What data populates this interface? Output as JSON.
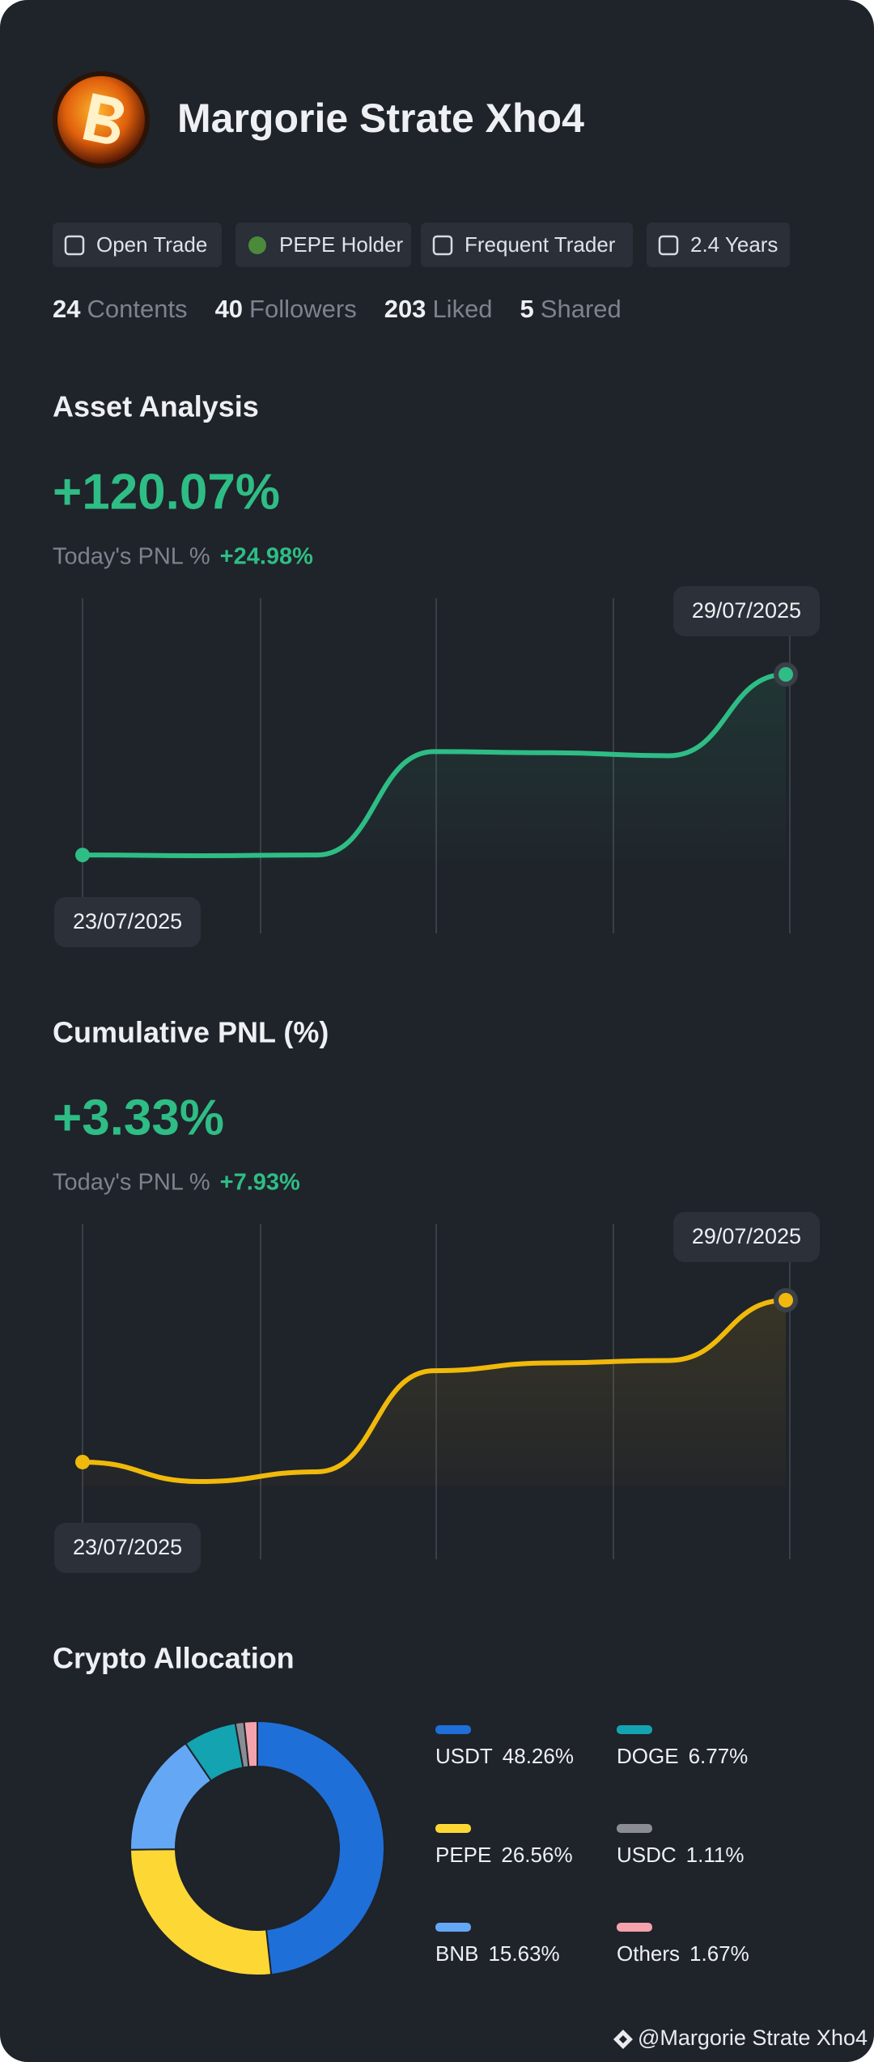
{
  "profile": {
    "name": "Margorie Strate Xho4",
    "tags": [
      "Open Trade",
      "PEPE Holder",
      "Frequent Trader",
      "2.4 Years"
    ],
    "stats": [
      {
        "value": 24,
        "label": "Contents"
      },
      {
        "value": 40,
        "label": "Followers"
      },
      {
        "value": 203,
        "label": "Liked"
      },
      {
        "value": 5,
        "label": "Shared"
      }
    ]
  },
  "chart_data": [
    {
      "type": "line",
      "title": "Asset Analysis",
      "headline": "+120.07%",
      "today_label": "Today's PNL %",
      "today_value": "+24.98%",
      "categories": [
        "23/07/2025",
        null,
        null,
        null,
        null,
        null,
        "29/07/2025"
      ],
      "series": [
        {
          "color": "#2ebd85",
          "values": [
            0,
            -0.5,
            0,
            68.7,
            68,
            66,
            120.07
          ]
        }
      ]
    },
    {
      "type": "line",
      "title": "Cumulative PNL (%)",
      "headline": "+3.33%",
      "today_label": "Today's PNL %",
      "today_value": "+7.93%",
      "categories": [
        "23/07/2025",
        null,
        null,
        null,
        null,
        null,
        "29/07/2025"
      ],
      "series": [
        {
          "color": "#f0b90b",
          "values": [
            0,
            -0.4,
            -0.2,
            1.88,
            2.04,
            2.09,
            3.33
          ]
        }
      ]
    },
    {
      "type": "pie",
      "title": "Crypto Allocation",
      "donut": true,
      "categories": [
        "USDT",
        "PEPE",
        "BNB",
        "DOGE",
        "USDC",
        "Others"
      ],
      "values": [
        48.26,
        26.56,
        15.63,
        6.77,
        1.11,
        1.67
      ],
      "value_labels": [
        "48.26%",
        "26.56%",
        "15.63%",
        "6.77%",
        "1.11%",
        "1.67%"
      ],
      "colors": [
        "#1f6fd8",
        "#fdd835",
        "#64a8f5",
        "#14a3b0",
        "#8a8d93",
        "#f4a3ad"
      ]
    }
  ],
  "footer": "@Margorie Strate Xho4"
}
